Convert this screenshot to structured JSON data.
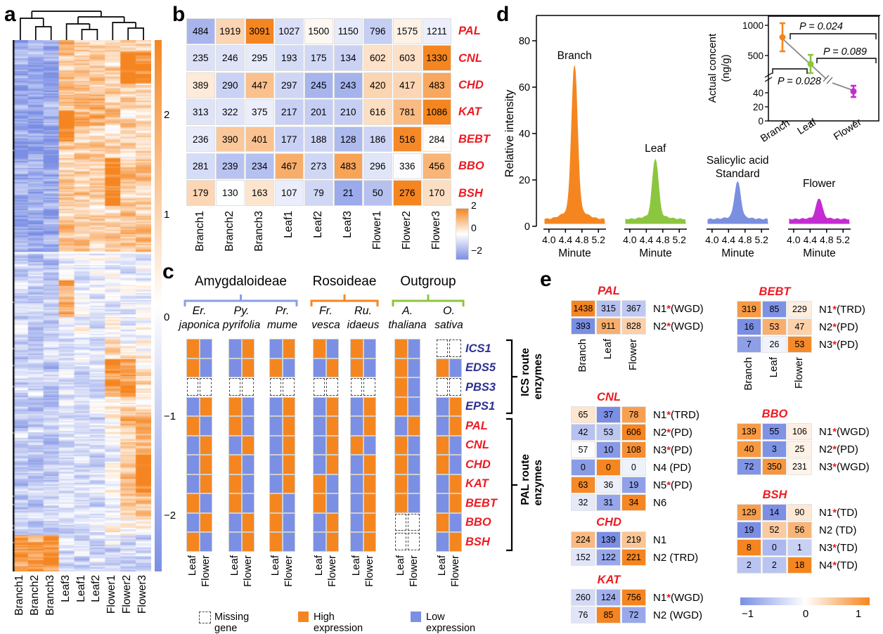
{
  "panel_labels": {
    "a": "a",
    "b": "b",
    "c": "c",
    "d": "d",
    "e": "e"
  },
  "colors": {
    "high_orange": "#F5861F",
    "low_blue": "#7B8FE4",
    "red_label": "#EC1B23",
    "navy_label": "#2E3192",
    "amygdaloideae": "#8B9EE7",
    "rosoideae": "#F5861F",
    "outgroup": "#8CC63E",
    "branch": "#F5861F",
    "leaf": "#8CC63E",
    "standard": "#7B8FE0",
    "flower": "#C52BD3"
  },
  "chart_data": [
    {
      "id": "a",
      "type": "heatmap",
      "title": "Hierarchically clustered expression heatmap (row z-scores)",
      "columns": [
        "Branch1",
        "Branch2",
        "Branch3",
        "Leaf3",
        "Leaf1",
        "Leaf2",
        "Flower1",
        "Flower2",
        "Flower3"
      ],
      "colorbar_ticks": [
        "2",
        "1",
        "0",
        "−1",
        "−2"
      ],
      "scale_range": [
        -2,
        2
      ],
      "dendrogram": "((Branch1,(Branch2,Branch3)),((Leaf3,(Leaf1,Leaf2)),(Flower1,(Flower2,Flower3))))",
      "pattern_blocks": [
        {
          "rows": [
            0,
            0.4
          ],
          "cols": [
            0,
            1,
            2
          ],
          "level": -1.5
        },
        {
          "rows": [
            0,
            0.4
          ],
          "cols": [
            3,
            4,
            5,
            6,
            7,
            8
          ],
          "level": 0.8
        },
        {
          "rows": [
            0.02,
            0.08
          ],
          "cols": [
            7,
            8
          ],
          "level": 1.2
        },
        {
          "rows": [
            0.13,
            0.19
          ],
          "cols": [
            3
          ],
          "level": 1.6
        },
        {
          "rows": [
            0.1,
            0.16
          ],
          "cols": [
            4,
            5
          ],
          "level": 0.5
        },
        {
          "rows": [
            0.22,
            0.31
          ],
          "cols": [
            6
          ],
          "level": 1.2
        },
        {
          "rows": [
            0.4,
            0.93
          ],
          "cols": [
            0,
            1,
            2
          ],
          "level": -0.85
        },
        {
          "rows": [
            0.4,
            0.56
          ],
          "cols": [
            3,
            4,
            5,
            6,
            7,
            8
          ],
          "level": -0.3
        },
        {
          "rows": [
            0.45,
            0.52
          ],
          "cols": [
            3
          ],
          "level": 1.5
        },
        {
          "rows": [
            0.56,
            0.7
          ],
          "cols": [
            3,
            4,
            5
          ],
          "level": -0.5
        },
        {
          "rows": [
            0.56,
            0.7
          ],
          "cols": [
            6,
            7,
            8
          ],
          "level": 0.3
        },
        {
          "rows": [
            0.6,
            0.67
          ],
          "cols": [
            6,
            7
          ],
          "level": 1.3
        },
        {
          "rows": [
            0.7,
            0.93
          ],
          "cols": [
            3,
            4,
            5
          ],
          "level": -0.6
        },
        {
          "rows": [
            0.7,
            0.9
          ],
          "cols": [
            7,
            8
          ],
          "level": 0.9
        },
        {
          "rows": [
            0.78,
            0.85
          ],
          "cols": [
            8
          ],
          "level": 1.3
        },
        {
          "rows": [
            0.93,
            1.0
          ],
          "cols": [
            0,
            1,
            2
          ],
          "level": 1.7
        },
        {
          "rows": [
            0.93,
            1.0
          ],
          "cols": [
            3,
            4,
            5,
            6,
            7,
            8
          ],
          "level": -0.7
        }
      ]
    },
    {
      "id": "b",
      "type": "heatmap",
      "row_labels": [
        "PAL",
        "CNL",
        "CHD",
        "KAT",
        "BEBT",
        "BBO",
        "BSH"
      ],
      "columns": [
        "Branch1",
        "Branch2",
        "Branch3",
        "Leaf1",
        "Leaf2",
        "Leaf3",
        "Flower1",
        "Flower2",
        "Flower3"
      ],
      "values": [
        [
          484,
          1919,
          3091,
          1027,
          1500,
          1150,
          796,
          1575,
          1211
        ],
        [
          235,
          246,
          295,
          193,
          175,
          134,
          602,
          603,
          1330
        ],
        [
          389,
          290,
          447,
          297,
          245,
          243,
          420,
          417,
          483
        ],
        [
          313,
          322,
          375,
          217,
          201,
          210,
          616,
          781,
          1086
        ],
        [
          236,
          390,
          401,
          177,
          188,
          128,
          186,
          516,
          284
        ],
        [
          281,
          239,
          234,
          467,
          273,
          483,
          296,
          336,
          456
        ],
        [
          179,
          130,
          163,
          107,
          79,
          21,
          50,
          276,
          170
        ]
      ],
      "colorbar_ticks": [
        "2",
        "0",
        "−2"
      ],
      "scale_range": [
        -2,
        2
      ]
    },
    {
      "id": "c",
      "type": "categorical-matrix",
      "groups": [
        {
          "name": "Amygdaloideae",
          "color": "#8B9EE7",
          "species": [
            [
              "Er.",
              "japonica"
            ],
            [
              "Py.",
              "pyrifolia"
            ],
            [
              "Pr.",
              "mume"
            ]
          ]
        },
        {
          "name": "Rosoideae",
          "color": "#F5861F",
          "species": [
            [
              "Fr.",
              "vesca"
            ],
            [
              "Ru.",
              "idaeus"
            ]
          ]
        },
        {
          "name": "Outgroup",
          "color": "#8CC63E",
          "species": [
            [
              "A.",
              "thaliana"
            ],
            [
              "O.",
              "sativa"
            ]
          ]
        }
      ],
      "genes": [
        "ICS1",
        "EDS5",
        "PBS3",
        "EPS1",
        "PAL",
        "CNL",
        "CHD",
        "KAT",
        "BEBT",
        "BBO",
        "BSH"
      ],
      "ics_gene_count": 4,
      "route_labels": [
        [
          "ICS route",
          "enzymes"
        ],
        [
          "PAL route",
          "enzymes"
        ]
      ],
      "tissues": [
        "Leaf",
        "Flower"
      ],
      "matrix": {
        "Er. japonica": [
          "HL",
          "HL",
          "MM",
          "LH",
          "HL",
          "LH",
          "LH",
          "LH",
          "HL",
          "LH",
          "HL"
        ],
        "Py. pyrifolia": [
          "LH",
          "LH",
          "MM",
          "HL",
          "HL",
          "LH",
          "HL",
          "HL",
          "HL",
          "LH",
          "LH"
        ],
        "Pr. mume": [
          "LH",
          "HL",
          "MM",
          "LH",
          "LH",
          "LH",
          "LH",
          "LH",
          "HL",
          "HL",
          "HL"
        ],
        "Fr. vesca": [
          "HL",
          "LH",
          "MM",
          "LH",
          "LH",
          "LH",
          "LH",
          "HL",
          "HL",
          "LH",
          "LH"
        ],
        "Ru. idaeus": [
          "HL",
          "HL",
          "MM",
          "LH",
          "LH",
          "HL",
          "LH",
          "LH",
          "LH",
          "LH",
          "LH"
        ],
        "A. thaliana": [
          "HL",
          "HL",
          "HL",
          "HL",
          "LH",
          "HL",
          "HL",
          "HL",
          "HL",
          "MM",
          "MM"
        ],
        "O. sativa": [
          "MM",
          "HL",
          "MM",
          "LH",
          "LH",
          "HL",
          "HL",
          "LH",
          "LH",
          "HL",
          "LH"
        ]
      },
      "encoding": {
        "H": "High expression (Leaf,Flower pair)",
        "L": "Low expression",
        "M": "Missing gene"
      },
      "legend": [
        {
          "key": "missing",
          "label": "Missing gene"
        },
        {
          "key": "high",
          "label": "High expression"
        },
        {
          "key": "low",
          "label": "Low expression"
        }
      ]
    },
    {
      "id": "d",
      "type": "area",
      "ylabel": "Relative intensity",
      "yticks": [
        "80",
        "60",
        "40",
        "20",
        "0"
      ],
      "ylim": [
        0,
        88
      ],
      "xlabel": "Minute",
      "xticks": [
        "4.0",
        "4.4",
        "4.8",
        "5.2"
      ],
      "x_range": [
        3.9,
        5.35
      ],
      "peak_minute": 4.62,
      "baseline": 3,
      "chromatograms": [
        {
          "name": "Branch",
          "label_lines": [
            "Branch"
          ],
          "color": "#F5861F",
          "peak_height": 69
        },
        {
          "name": "Leaf",
          "label_lines": [
            "Leaf"
          ],
          "color": "#8CC63E",
          "peak_height": 29
        },
        {
          "name": "Salicylic acid Standard",
          "label_lines": [
            "Salicylic acid",
            "Standard"
          ],
          "color": "#7B8FE0",
          "peak_height": 19
        },
        {
          "name": "Flower",
          "label_lines": [
            "Flower"
          ],
          "color": "#C52BD3",
          "peak_height": 12
        }
      ],
      "inset": {
        "ylabel_lines": [
          "Actual concent",
          "(ng/g)"
        ],
        "yticks_upper": [
          "1000",
          "500"
        ],
        "yticks_lower": [
          "40",
          "20",
          "0"
        ],
        "categories": [
          "Branch",
          "Leaf",
          "Flower"
        ],
        "values_ng_g": [
          820,
          350,
          45
        ],
        "errors": [
          200,
          90,
          10
        ],
        "colors": [
          "#F5861F",
          "#8CC63E",
          "#C52BD3"
        ],
        "p_values": [
          "P = 0.024",
          "P = 0.089",
          "P = 0.028"
        ],
        "axis_break": true
      }
    },
    {
      "id": "e",
      "type": "heatmap-group",
      "columns": [
        "Branch",
        "Leaf",
        "Flower"
      ],
      "colorbar_ticks": [
        "−1",
        "0",
        "1"
      ],
      "scale_range": [
        -1,
        1
      ],
      "tables": [
        {
          "gene": "PAL",
          "show_columns": true,
          "rows": [
            {
              "name": "N1",
              "sig": true,
              "dup": "(WGD)",
              "values": [
                1438,
                315,
                367
              ]
            },
            {
              "name": "N2",
              "sig": true,
              "dup": "(WGD)",
              "values": [
                393,
                911,
                828
              ]
            }
          ]
        },
        {
          "gene": "CNL",
          "show_columns": false,
          "rows": [
            {
              "name": "N1",
              "sig": true,
              "dup": "(TRD)",
              "values": [
                65,
                37,
                78
              ]
            },
            {
              "name": "N2",
              "sig": true,
              "dup": "(PD)",
              "values": [
                42,
                53,
                606
              ]
            },
            {
              "name": "N3",
              "sig": true,
              "dup": "(PD)",
              "values": [
                57,
                10,
                108
              ]
            },
            {
              "name": "N4",
              "sig": false,
              "dup": "(PD)",
              "values": [
                0,
                0,
                0
              ],
              "cell_colors": [
                "#8B9CE6",
                "#F5861F",
                "#EEF2FB"
              ]
            },
            {
              "name": "N5",
              "sig": true,
              "dup": "(PD)",
              "values": [
                63,
                36,
                19
              ]
            },
            {
              "name": "N6",
              "sig": false,
              "dup": "",
              "values": [
                32,
                31,
                34
              ]
            }
          ]
        },
        {
          "gene": "CHD",
          "show_columns": false,
          "rows": [
            {
              "name": "N1",
              "sig": false,
              "dup": "",
              "values": [
                224,
                139,
                219
              ]
            },
            {
              "name": "N2",
              "sig": false,
              "dup": "(TRD)",
              "values": [
                152,
                122,
                221
              ]
            }
          ]
        },
        {
          "gene": "KAT",
          "show_columns": false,
          "rows": [
            {
              "name": "N1",
              "sig": true,
              "dup": "(WGD)",
              "values": [
                260,
                124,
                756
              ]
            },
            {
              "name": "N2",
              "sig": false,
              "dup": "(WGD)",
              "values": [
                76,
                85,
                72
              ]
            }
          ]
        },
        {
          "gene": "BEBT",
          "show_columns": true,
          "rows": [
            {
              "name": "N1",
              "sig": true,
              "dup": "(TRD)",
              "values": [
                319,
                85,
                229
              ]
            },
            {
              "name": "N2",
              "sig": true,
              "dup": "(PD)",
              "values": [
                16,
                53,
                47
              ]
            },
            {
              "name": "N3",
              "sig": true,
              "dup": "(PD)",
              "values": [
                7,
                26,
                53
              ]
            }
          ]
        },
        {
          "gene": "BBO",
          "show_columns": false,
          "rows": [
            {
              "name": "N1",
              "sig": true,
              "dup": "(WGD)",
              "values": [
                139,
                55,
                106
              ]
            },
            {
              "name": "N2",
              "sig": true,
              "dup": "(PD)",
              "values": [
                40,
                3,
                25
              ]
            },
            {
              "name": "N3",
              "sig": true,
              "dup": "(WGD)",
              "values": [
                72,
                350,
                231
              ]
            }
          ]
        },
        {
          "gene": "BSH",
          "show_columns": false,
          "rows": [
            {
              "name": "N1",
              "sig": true,
              "dup": "(TD)",
              "values": [
                129,
                14,
                90
              ]
            },
            {
              "name": "N2",
              "sig": false,
              "dup": "(TD)",
              "values": [
                19,
                52,
                56
              ]
            },
            {
              "name": "N3",
              "sig": true,
              "dup": "(TD)",
              "values": [
                8,
                0,
                1
              ]
            },
            {
              "name": "N4",
              "sig": true,
              "dup": "(TD)",
              "values": [
                2,
                2,
                18
              ]
            }
          ]
        }
      ]
    }
  ]
}
